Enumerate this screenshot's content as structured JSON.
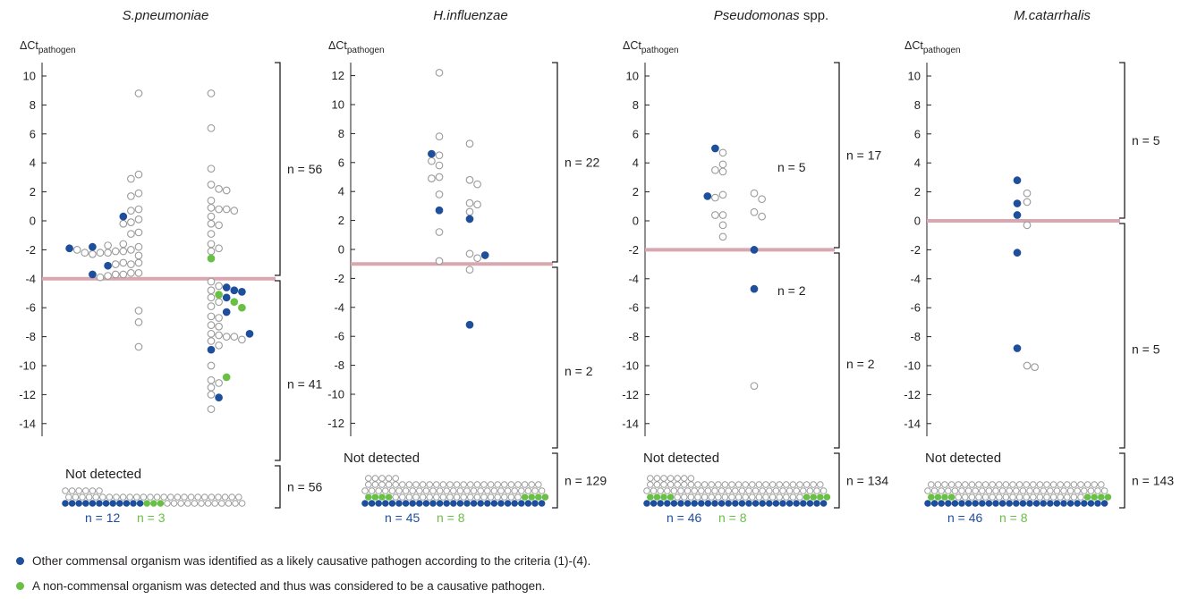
{
  "colors": {
    "open": "#9a9a9a",
    "blue": "#1e4f9c",
    "green": "#6abf45",
    "threshold": "#d9a7b0",
    "ink": "#231f20"
  },
  "axis_label": "ΔCt",
  "axis_label_sub": "pathogen",
  "not_detected_label": "Not detected",
  "legend": [
    {
      "color": "blue",
      "text": "Other commensal organism was identified as a likely causative pathogen according to the criteria (1)-(4)."
    },
    {
      "color": "green",
      "text": "A non-commensal organism was detected and thus was considered to be a causative pathogen."
    }
  ],
  "chart_data": [
    {
      "type": "scatter",
      "title_species": "S.pneumoniae",
      "title_suffix": "",
      "yticks": [
        10,
        8,
        6,
        4,
        2,
        0,
        -2,
        -4,
        -6,
        -8,
        -10,
        -12,
        -14
      ],
      "ylim": [
        -15,
        11
      ],
      "threshold": -4,
      "counts": {
        "above": "n = 56",
        "below": "n = 41",
        "not_detected": "n = 56"
      },
      "inner_counts": [],
      "nd_counts": {
        "blue": "n = 12",
        "green": "n = 3"
      },
      "not_detected": {
        "top_open": 6,
        "mid": {
          "blue": 0,
          "green": 0,
          "open": 30,
          "green_after": 3,
          "green_pos": 21
        },
        "bottom_blue": 12,
        "bottom_green": 3
      },
      "columns": [
        {
          "group": "left",
          "points": [
            {
              "y": -1.8,
              "c": "open"
            },
            {
              "y": -2.0,
              "c": "open"
            },
            {
              "y": -2.1,
              "c": "open"
            },
            {
              "y": -2.1,
              "c": "open"
            },
            {
              "y": -2.2,
              "c": "open"
            },
            {
              "y": -2.4,
              "c": "open"
            },
            {
              "y": -2.2,
              "c": "open"
            },
            {
              "y": -2.3,
              "c": "open"
            },
            {
              "y": -2.2,
              "c": "open"
            },
            {
              "y": -2.0,
              "c": "open"
            },
            {
              "y": -2.9,
              "c": "open"
            },
            {
              "y": -3.0,
              "c": "open"
            },
            {
              "y": -2.9,
              "c": "open"
            },
            {
              "y": -3.0,
              "c": "open"
            },
            {
              "y": -3.6,
              "c": "open"
            },
            {
              "y": -3.6,
              "c": "open"
            },
            {
              "y": -3.7,
              "c": "open"
            },
            {
              "y": -3.7,
              "c": "open"
            },
            {
              "y": -3.8,
              "c": "open"
            },
            {
              "y": -3.9,
              "c": "open"
            },
            {
              "y": 8.8,
              "c": "open"
            },
            {
              "y": 3.2,
              "c": "open"
            },
            {
              "y": 2.9,
              "c": "open"
            },
            {
              "y": 1.9,
              "c": "open"
            },
            {
              "y": 1.7,
              "c": "open"
            },
            {
              "y": 0.8,
              "c": "open"
            },
            {
              "y": 0.7,
              "c": "open"
            },
            {
              "y": 0.1,
              "c": "open"
            },
            {
              "y": -0.1,
              "c": "open"
            },
            {
              "y": -0.2,
              "c": "open"
            },
            {
              "y": -0.8,
              "c": "open"
            },
            {
              "y": -0.9,
              "c": "open"
            },
            {
              "y": -1.6,
              "c": "open"
            },
            {
              "y": -1.7,
              "c": "open"
            },
            {
              "y": -6.2,
              "c": "open"
            },
            {
              "y": -7.0,
              "c": "open"
            },
            {
              "y": -8.7,
              "c": "open"
            },
            {
              "y": 0.3,
              "c": "blue"
            },
            {
              "y": -1.8,
              "c": "blue"
            },
            {
              "y": -1.9,
              "c": "blue"
            },
            {
              "y": -3.1,
              "c": "blue"
            },
            {
              "y": -3.7,
              "c": "blue"
            }
          ]
        },
        {
          "group": "right",
          "points": [
            {
              "y": 8.8,
              "c": "open"
            },
            {
              "y": 6.4,
              "c": "open"
            },
            {
              "y": 3.6,
              "c": "open"
            },
            {
              "y": 2.5,
              "c": "open"
            },
            {
              "y": 2.2,
              "c": "open"
            },
            {
              "y": 2.1,
              "c": "open"
            },
            {
              "y": 1.4,
              "c": "open"
            },
            {
              "y": 0.9,
              "c": "open"
            },
            {
              "y": 0.8,
              "c": "open"
            },
            {
              "y": 0.8,
              "c": "open"
            },
            {
              "y": 0.7,
              "c": "open"
            },
            {
              "y": 0.3,
              "c": "open"
            },
            {
              "y": -0.2,
              "c": "open"
            },
            {
              "y": -0.3,
              "c": "open"
            },
            {
              "y": -0.9,
              "c": "open"
            },
            {
              "y": -1.6,
              "c": "open"
            },
            {
              "y": -1.9,
              "c": "open"
            },
            {
              "y": -2.1,
              "c": "open"
            },
            {
              "y": -4.2,
              "c": "open"
            },
            {
              "y": -4.5,
              "c": "open"
            },
            {
              "y": -4.8,
              "c": "open"
            },
            {
              "y": -5.3,
              "c": "open"
            },
            {
              "y": -5.6,
              "c": "open"
            },
            {
              "y": -5.9,
              "c": "open"
            },
            {
              "y": -6.6,
              "c": "open"
            },
            {
              "y": -6.7,
              "c": "open"
            },
            {
              "y": -7.2,
              "c": "open"
            },
            {
              "y": -7.3,
              "c": "open"
            },
            {
              "y": -7.8,
              "c": "open"
            },
            {
              "y": -7.9,
              "c": "open"
            },
            {
              "y": -8.0,
              "c": "open"
            },
            {
              "y": -8.0,
              "c": "open"
            },
            {
              "y": -8.2,
              "c": "open"
            },
            {
              "y": -8.3,
              "c": "open"
            },
            {
              "y": -8.6,
              "c": "open"
            },
            {
              "y": -10.0,
              "c": "open"
            },
            {
              "y": -11.0,
              "c": "open"
            },
            {
              "y": -11.2,
              "c": "open"
            },
            {
              "y": -11.5,
              "c": "open"
            },
            {
              "y": -12.0,
              "c": "open"
            },
            {
              "y": -13.0,
              "c": "open"
            },
            {
              "y": -4.6,
              "c": "blue"
            },
            {
              "y": -4.8,
              "c": "blue"
            },
            {
              "y": -4.9,
              "c": "blue"
            },
            {
              "y": -5.3,
              "c": "blue"
            },
            {
              "y": -6.3,
              "c": "blue"
            },
            {
              "y": -7.8,
              "c": "blue"
            },
            {
              "y": -8.9,
              "c": "blue"
            },
            {
              "y": -12.2,
              "c": "blue"
            },
            {
              "y": -2.6,
              "c": "green"
            },
            {
              "y": -5.1,
              "c": "green"
            },
            {
              "y": -5.6,
              "c": "green"
            },
            {
              "y": -6.0,
              "c": "green"
            },
            {
              "y": -10.8,
              "c": "green"
            }
          ]
        }
      ]
    },
    {
      "type": "scatter",
      "title_species": "H.influenzae",
      "title_suffix": "",
      "yticks": [
        12,
        10,
        8,
        6,
        4,
        2,
        0,
        -2,
        -4,
        -6,
        -8,
        -10,
        -12
      ],
      "ylim": [
        -13.5,
        13
      ],
      "threshold": -1,
      "counts": {
        "above": "n = 22",
        "below": "n = 2",
        "not_detected": "n = 129"
      },
      "inner_counts": [],
      "nd_counts": {
        "blue": "n = 45",
        "green": "n = 8"
      },
      "not_detected": {
        "top_open": 5,
        "rows_open": 3,
        "bottom_blue": 45,
        "bottom_green": 8
      },
      "columns": [
        {
          "group": "left",
          "points": [
            {
              "y": 12.2,
              "c": "open"
            },
            {
              "y": 7.8,
              "c": "open"
            },
            {
              "y": 6.5,
              "c": "open"
            },
            {
              "y": 6.1,
              "c": "open"
            },
            {
              "y": 5.8,
              "c": "open"
            },
            {
              "y": 5.0,
              "c": "open"
            },
            {
              "y": 4.9,
              "c": "open"
            },
            {
              "y": 3.8,
              "c": "open"
            },
            {
              "y": 1.2,
              "c": "open"
            },
            {
              "y": -0.8,
              "c": "open"
            },
            {
              "y": 6.6,
              "c": "blue"
            },
            {
              "y": 2.7,
              "c": "blue"
            }
          ]
        },
        {
          "group": "right",
          "points": [
            {
              "y": 7.3,
              "c": "open"
            },
            {
              "y": 4.8,
              "c": "open"
            },
            {
              "y": 4.5,
              "c": "open"
            },
            {
              "y": 3.2,
              "c": "open"
            },
            {
              "y": 3.1,
              "c": "open"
            },
            {
              "y": 2.6,
              "c": "open"
            },
            {
              "y": -0.3,
              "c": "open"
            },
            {
              "y": -0.6,
              "c": "open"
            },
            {
              "y": -1.4,
              "c": "open"
            },
            {
              "y": 2.1,
              "c": "blue"
            },
            {
              "y": -0.4,
              "c": "blue"
            },
            {
              "y": -5.2,
              "c": "blue"
            }
          ]
        }
      ]
    },
    {
      "type": "scatter",
      "title_species": "Pseudomonas",
      "title_suffix": " spp.",
      "yticks": [
        10,
        8,
        6,
        4,
        2,
        0,
        -2,
        -4,
        -6,
        -8,
        -10,
        -12,
        -14
      ],
      "ylim": [
        -15,
        11
      ],
      "threshold": -2,
      "counts": {
        "above": "n = 17",
        "below": "n = 2",
        "not_detected": "n = 134"
      },
      "inner_counts": [
        {
          "text": "n = 5",
          "y": 3.7
        },
        {
          "text": "n = 2",
          "y": -4.8
        }
      ],
      "nd_counts": {
        "blue": "n = 46",
        "green": "n = 8"
      },
      "not_detected": {
        "top_open": 7,
        "rows_open": 3,
        "bottom_blue": 46,
        "bottom_green": 8
      },
      "columns": [
        {
          "group": "left",
          "points": [
            {
              "y": 3.9,
              "c": "open"
            },
            {
              "y": 3.5,
              "c": "open"
            },
            {
              "y": 3.4,
              "c": "open"
            },
            {
              "y": 4.7,
              "c": "open"
            },
            {
              "y": 1.8,
              "c": "open"
            },
            {
              "y": 1.6,
              "c": "open"
            },
            {
              "y": 0.4,
              "c": "open"
            },
            {
              "y": 0.4,
              "c": "open"
            },
            {
              "y": -0.3,
              "c": "open"
            },
            {
              "y": -1.1,
              "c": "open"
            },
            {
              "y": 5.0,
              "c": "blue"
            },
            {
              "y": 1.7,
              "c": "blue"
            }
          ]
        },
        {
          "group": "right",
          "points": [
            {
              "y": 1.9,
              "c": "open"
            },
            {
              "y": 1.5,
              "c": "open"
            },
            {
              "y": 0.6,
              "c": "open"
            },
            {
              "y": 0.3,
              "c": "open"
            },
            {
              "y": -11.4,
              "c": "open"
            },
            {
              "y": -2.0,
              "c": "blue"
            },
            {
              "y": -4.7,
              "c": "blue"
            }
          ]
        }
      ]
    },
    {
      "type": "scatter",
      "title_species": "M.catarrhalis",
      "title_suffix": "",
      "yticks": [
        10,
        8,
        6,
        4,
        2,
        0,
        -2,
        -4,
        -6,
        -8,
        -10,
        -12,
        -14
      ],
      "ylim": [
        -15,
        11
      ],
      "threshold": 0,
      "counts": {
        "above": "n = 5",
        "below": "n = 5",
        "not_detected": "n = 143"
      },
      "inner_counts": [],
      "nd_counts": {
        "blue": "n = 46",
        "green": "n = 8"
      },
      "not_detected": {
        "top_open": 0,
        "rows_open": 3,
        "bottom_blue": 46,
        "bottom_green": 8
      },
      "columns": [
        {
          "group": "left",
          "points": [
            {
              "y": 2.8,
              "c": "blue"
            },
            {
              "y": 1.2,
              "c": "blue"
            },
            {
              "y": 0.4,
              "c": "blue"
            },
            {
              "y": -2.2,
              "c": "blue"
            },
            {
              "y": -8.8,
              "c": "blue"
            }
          ]
        },
        {
          "group": "right",
          "points": [
            {
              "y": 1.9,
              "c": "open"
            },
            {
              "y": 1.3,
              "c": "open"
            },
            {
              "y": -0.3,
              "c": "open"
            },
            {
              "y": -10.0,
              "c": "open"
            },
            {
              "y": -10.1,
              "c": "open"
            }
          ]
        }
      ]
    }
  ]
}
